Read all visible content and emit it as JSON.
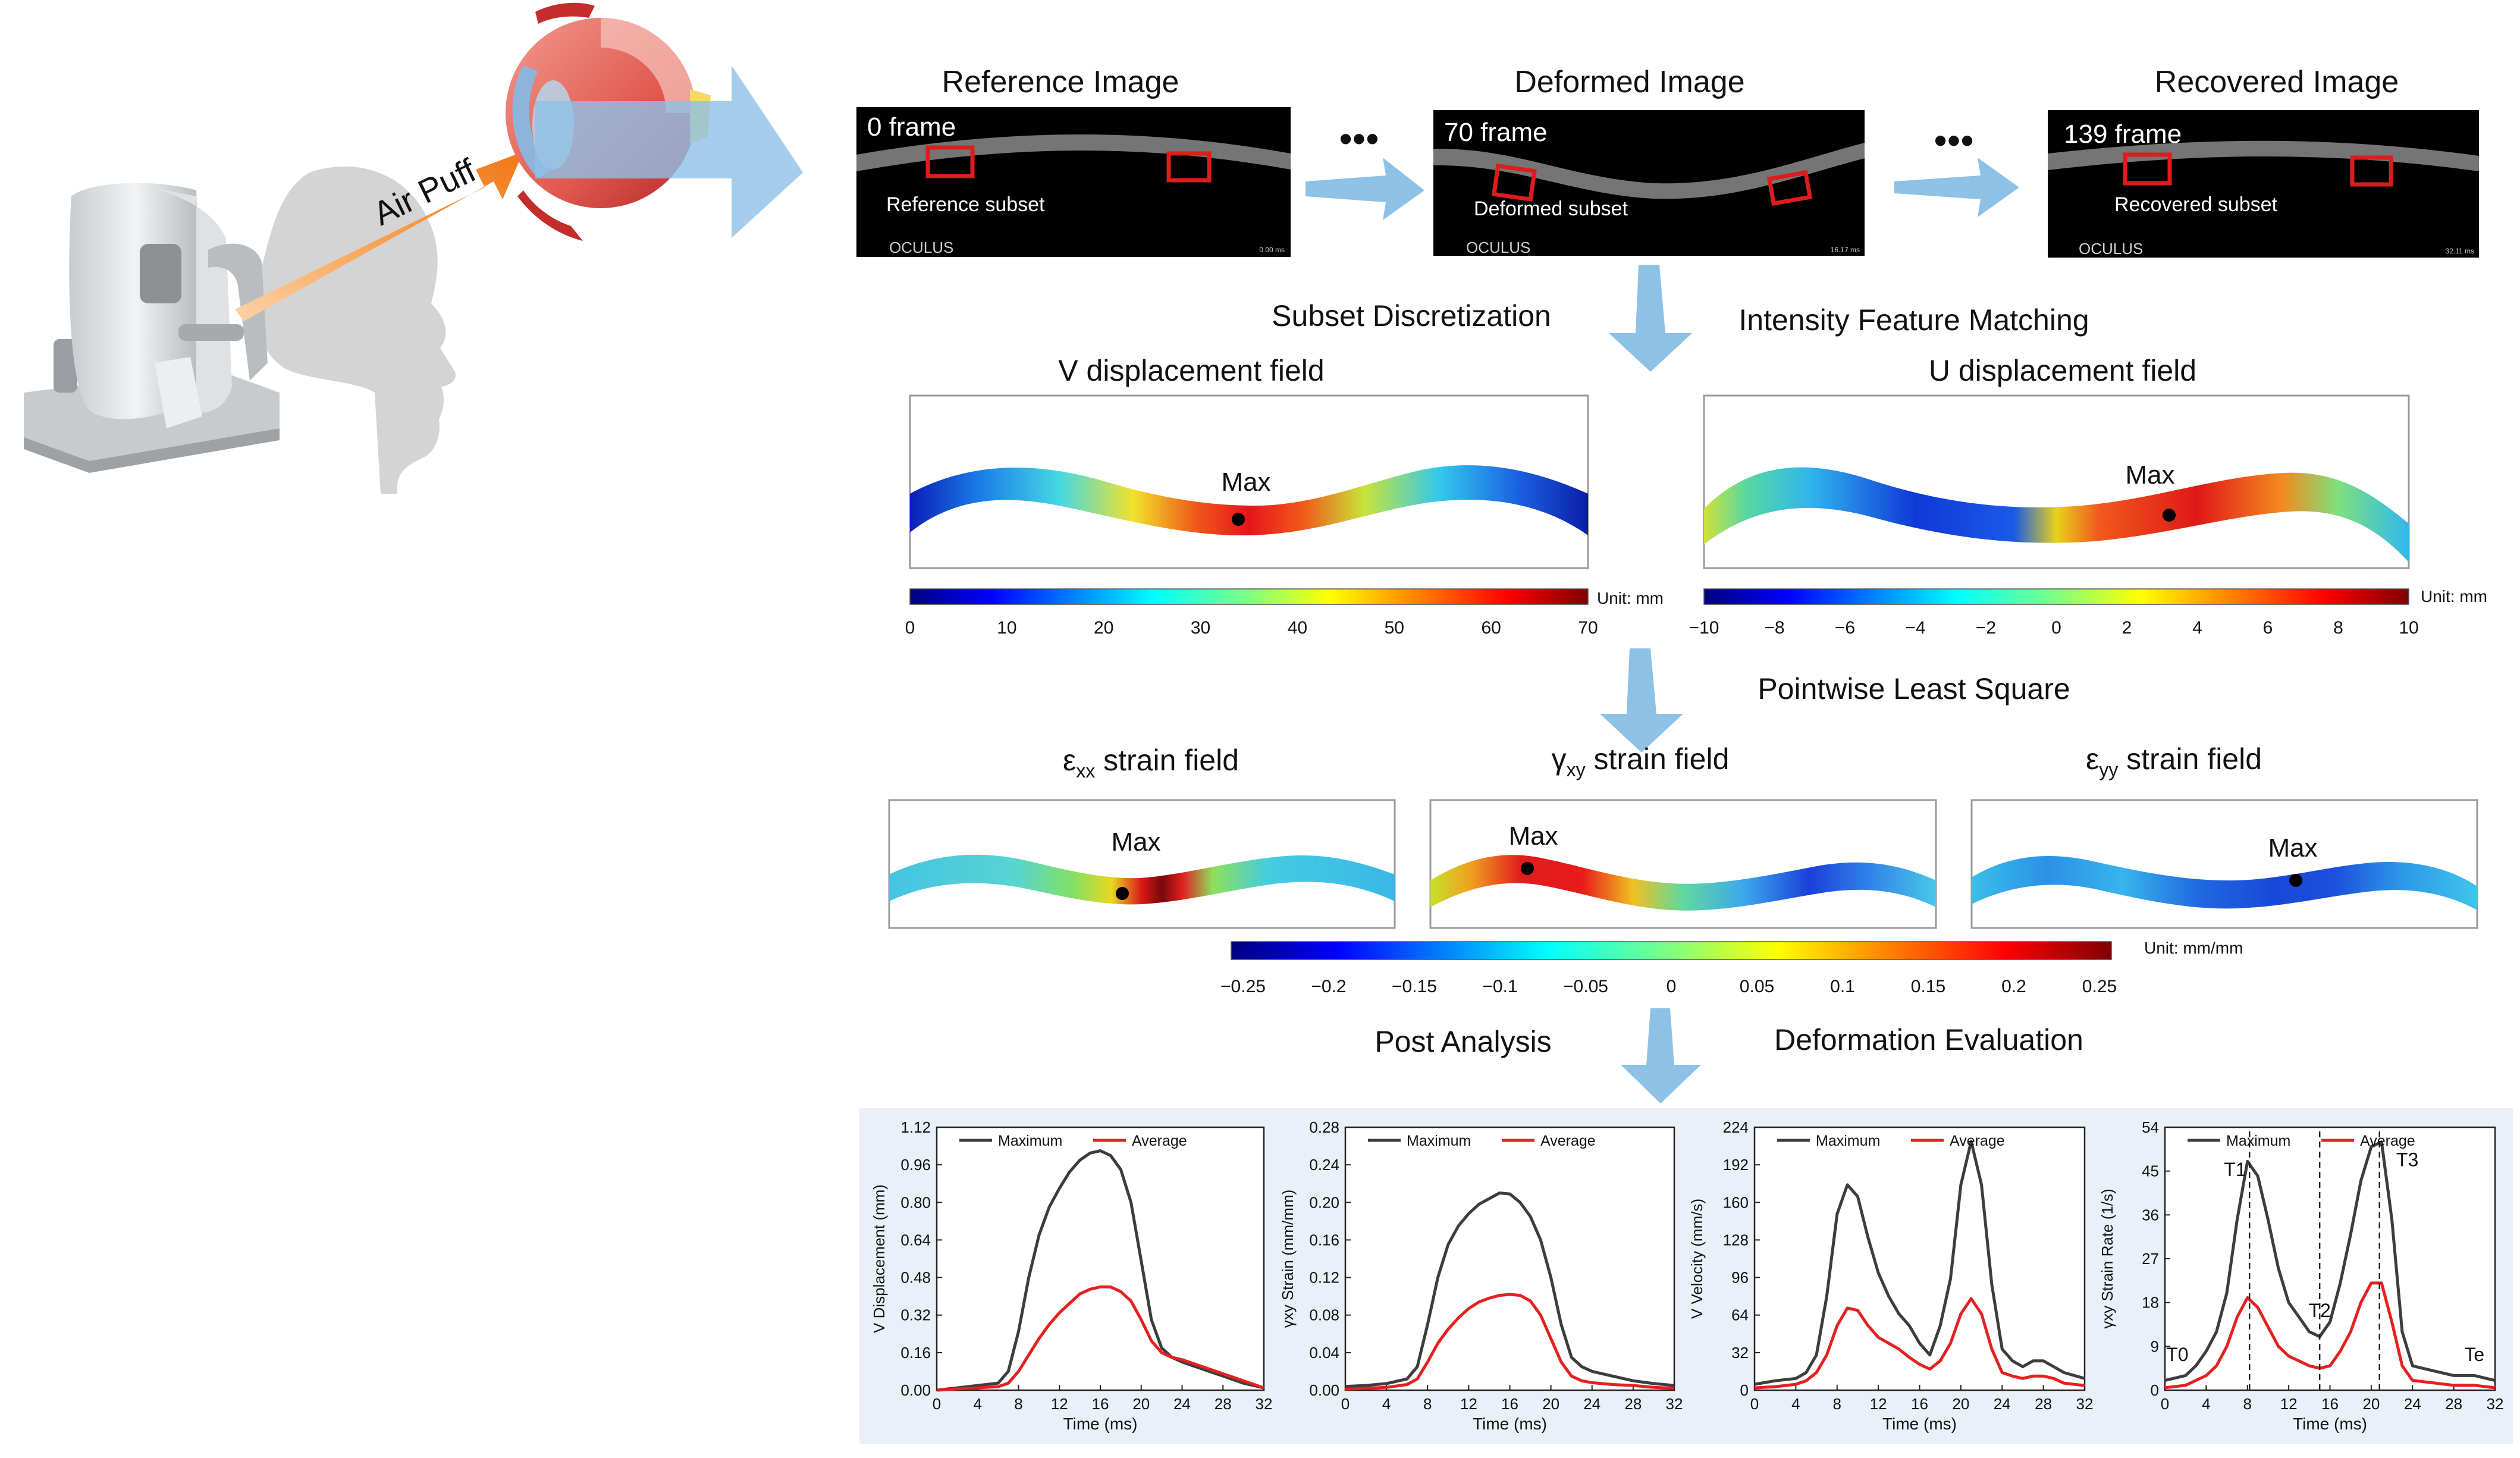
{
  "colors": {
    "arrow": "#8ec1e6",
    "orange": "#f5892a",
    "red_box": "#dd1c1c",
    "panel_bg": "#eaf0f8",
    "max_line": "#3d3d3d",
    "avg_line": "#e52020"
  },
  "device": {
    "airpuff_label": "Air Puff"
  },
  "frames": [
    {
      "title": "Reference Image",
      "frame_label": "0 frame",
      "subset_label": "Reference subset",
      "brand": "OCULUS",
      "time": "0.00 ms"
    },
    {
      "title": "Deformed Image",
      "frame_label": "70 frame",
      "subset_label": "Deformed subset",
      "brand": "OCULUS",
      "time": "16.17 ms"
    },
    {
      "title": "Recovered Image",
      "frame_label": "139 frame",
      "subset_label": "Recovered subset",
      "brand": "OCULUS",
      "time": "32.11 ms"
    }
  ],
  "ellipsis": "•••",
  "steps": {
    "subset_discretization": "Subset Discretization",
    "intensity_matching": "Intensity Feature Matching",
    "pointwise": "Pointwise Least Square",
    "post_analysis": "Post Analysis",
    "deformation_eval": "Deformation Evaluation"
  },
  "displacement_fields": {
    "v": {
      "title": "V displacement field",
      "max_label": "Max"
    },
    "u": {
      "title": "U displacement field",
      "max_label": "Max"
    },
    "v_colorbar": {
      "ticks": [
        "0",
        "10",
        "20",
        "30",
        "40",
        "50",
        "60",
        "70"
      ],
      "unit": "Unit: mm"
    },
    "u_colorbar": {
      "ticks": [
        "−10",
        "−8",
        "−6",
        "−4",
        "−2",
        "0",
        "2",
        "4",
        "6",
        "8",
        "10"
      ],
      "unit": "Unit: mm"
    }
  },
  "strain_fields": {
    "exx": {
      "symbol": "ε",
      "sub": "xx",
      "rest": " strain field",
      "max_label": "Max"
    },
    "gxy": {
      "symbol": "γ",
      "sub": "xy",
      "rest": " strain field",
      "max_label": "Max"
    },
    "eyy": {
      "symbol": "ε",
      "sub": "yy",
      "rest": " strain field",
      "max_label": "Max"
    },
    "colorbar": {
      "ticks": [
        "−0.25",
        "−0.2",
        "−0.15",
        "−0.1",
        "−0.05",
        "0",
        "0.05",
        "0.1",
        "0.15",
        "0.2",
        "0.25"
      ],
      "unit": "Unit: mm/mm"
    }
  },
  "chart_data": [
    {
      "type": "line",
      "xlabel": "Time (ms)",
      "ylabel": "V Displacement (mm)",
      "xlim": [
        0,
        32
      ],
      "xticks": [
        "0",
        "4",
        "8",
        "12",
        "16",
        "20",
        "24",
        "28",
        "32"
      ],
      "ylim": [
        0,
        1.12
      ],
      "yticks": [
        "0.00",
        "0.16",
        "0.32",
        "0.48",
        "0.64",
        "0.80",
        "0.96",
        "1.12"
      ],
      "legend": [
        "Maximum",
        "Average"
      ],
      "x": [
        0,
        2,
        4,
        6,
        7,
        8,
        9,
        10,
        11,
        12,
        13,
        14,
        15,
        16,
        17,
        18,
        19,
        20,
        21,
        22,
        23,
        24,
        26,
        28,
        30,
        32
      ],
      "series": [
        {
          "name": "Maximum",
          "values": [
            0,
            0.01,
            0.02,
            0.03,
            0.08,
            0.25,
            0.48,
            0.66,
            0.78,
            0.86,
            0.93,
            0.98,
            1.01,
            1.02,
            1.0,
            0.94,
            0.8,
            0.55,
            0.3,
            0.18,
            0.14,
            0.12,
            0.09,
            0.06,
            0.03,
            0.01
          ]
        },
        {
          "name": "Average",
          "values": [
            0,
            0.005,
            0.01,
            0.015,
            0.03,
            0.08,
            0.15,
            0.22,
            0.28,
            0.33,
            0.37,
            0.41,
            0.43,
            0.44,
            0.44,
            0.42,
            0.38,
            0.3,
            0.21,
            0.16,
            0.14,
            0.13,
            0.1,
            0.07,
            0.04,
            0.01
          ]
        }
      ]
    },
    {
      "type": "line",
      "xlabel": "Time (ms)",
      "ylabel": "γxy Strain (mm/mm)",
      "xlim": [
        0,
        32
      ],
      "xticks": [
        "0",
        "4",
        "8",
        "12",
        "16",
        "20",
        "24",
        "28",
        "32"
      ],
      "ylim": [
        0,
        0.28
      ],
      "yticks": [
        "0.00",
        "0.04",
        "0.08",
        "0.12",
        "0.16",
        "0.20",
        "0.24",
        "0.28"
      ],
      "legend": [
        "Maximum",
        "Average"
      ],
      "x": [
        0,
        2,
        4,
        6,
        7,
        8,
        9,
        10,
        11,
        12,
        13,
        14,
        15,
        16,
        17,
        18,
        19,
        20,
        21,
        22,
        23,
        24,
        26,
        28,
        30,
        32
      ],
      "series": [
        {
          "name": "Maximum",
          "values": [
            0.004,
            0.005,
            0.007,
            0.012,
            0.025,
            0.07,
            0.12,
            0.155,
            0.175,
            0.188,
            0.198,
            0.204,
            0.21,
            0.209,
            0.2,
            0.185,
            0.16,
            0.12,
            0.07,
            0.035,
            0.025,
            0.02,
            0.015,
            0.01,
            0.007,
            0.005
          ]
        },
        {
          "name": "Average",
          "values": [
            0.001,
            0.002,
            0.003,
            0.006,
            0.012,
            0.03,
            0.05,
            0.065,
            0.077,
            0.087,
            0.094,
            0.098,
            0.101,
            0.102,
            0.101,
            0.095,
            0.08,
            0.055,
            0.03,
            0.015,
            0.01,
            0.008,
            0.006,
            0.005,
            0.003,
            0.002
          ]
        }
      ]
    },
    {
      "type": "line",
      "xlabel": "Time (ms)",
      "ylabel": "V Velocity (mm/s)",
      "xlim": [
        0,
        32
      ],
      "xticks": [
        "0",
        "4",
        "8",
        "12",
        "16",
        "20",
        "24",
        "28",
        "32"
      ],
      "ylim": [
        0,
        224
      ],
      "yticks": [
        "0",
        "32",
        "64",
        "96",
        "128",
        "160",
        "192",
        "224"
      ],
      "legend": [
        "Maximum",
        "Average"
      ],
      "x": [
        0,
        2,
        4,
        5,
        6,
        7,
        8,
        9,
        10,
        11,
        12,
        13,
        14,
        15,
        16,
        17,
        18,
        19,
        20,
        21,
        22,
        23,
        24,
        25,
        26,
        27,
        28,
        29,
        30,
        32
      ],
      "series": [
        {
          "name": "Maximum",
          "values": [
            5,
            8,
            10,
            15,
            30,
            80,
            150,
            175,
            165,
            130,
            100,
            80,
            65,
            55,
            40,
            30,
            55,
            95,
            175,
            212,
            175,
            90,
            35,
            25,
            20,
            25,
            25,
            20,
            15,
            10
          ]
        },
        {
          "name": "Average",
          "values": [
            2,
            3,
            5,
            8,
            15,
            30,
            55,
            70,
            68,
            55,
            45,
            40,
            35,
            28,
            22,
            18,
            25,
            40,
            65,
            78,
            65,
            35,
            15,
            12,
            10,
            12,
            12,
            10,
            6,
            4
          ]
        }
      ]
    },
    {
      "type": "line",
      "xlabel": "Time (ms)",
      "ylabel": "γxy Strain Rate (1/s)",
      "xlim": [
        0,
        32
      ],
      "xticks": [
        "0",
        "4",
        "8",
        "12",
        "16",
        "20",
        "24",
        "28",
        "32"
      ],
      "ylim": [
        0,
        54
      ],
      "yticks": [
        "0",
        "9",
        "18",
        "27",
        "36",
        "45",
        "54"
      ],
      "legend": [
        "Maximum",
        "Average"
      ],
      "annotations": [
        "T0",
        "T1",
        "T2",
        "T3",
        "Te"
      ],
      "x": [
        0,
        2,
        3,
        4,
        5,
        6,
        7,
        8,
        9,
        10,
        11,
        12,
        13,
        14,
        15,
        16,
        17,
        18,
        19,
        20,
        21,
        22,
        23,
        24,
        26,
        28,
        30,
        32
      ],
      "series": [
        {
          "name": "Maximum",
          "values": [
            2,
            3,
            5,
            8,
            12,
            20,
            35,
            47,
            44,
            35,
            25,
            18,
            15,
            12,
            11,
            14,
            22,
            32,
            43,
            50,
            51,
            35,
            12,
            5,
            4,
            3,
            3,
            2
          ]
        },
        {
          "name": "Average",
          "values": [
            0.5,
            1,
            2,
            3,
            5,
            9,
            15,
            19,
            17,
            13,
            9,
            7,
            6,
            5,
            4.5,
            5,
            8,
            12,
            18,
            22,
            22,
            14,
            5,
            2,
            1.5,
            1,
            1,
            0.5
          ]
        }
      ]
    }
  ]
}
